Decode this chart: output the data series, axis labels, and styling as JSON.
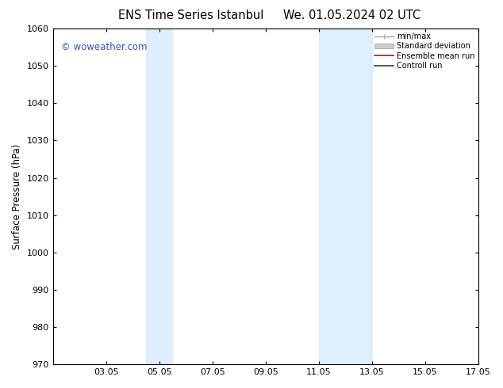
{
  "title_left": "ENS Time Series Istanbul",
  "title_right": "We. 01.05.2024 02 UTC",
  "ylabel": "Surface Pressure (hPa)",
  "ylim": [
    970,
    1060
  ],
  "yticks": [
    970,
    980,
    990,
    1000,
    1010,
    1020,
    1030,
    1040,
    1050,
    1060
  ],
  "xlim": [
    1.05,
    17.05
  ],
  "xticks": [
    3.05,
    5.05,
    7.05,
    9.05,
    11.05,
    13.05,
    15.05,
    17.05
  ],
  "xticklabels": [
    "03.05",
    "05.05",
    "07.05",
    "09.05",
    "11.05",
    "13.05",
    "15.05",
    "17.05"
  ],
  "background_color": "#ffffff",
  "plot_bg_color": "#ffffff",
  "shaded_bands": [
    {
      "xmin": 4.55,
      "xmax": 5.05
    },
    {
      "xmin": 5.05,
      "xmax": 5.55
    },
    {
      "xmin": 11.05,
      "xmax": 11.55
    },
    {
      "xmin": 12.55,
      "xmax": 13.05
    }
  ],
  "shaded_color": "#ddeeff",
  "watermark": "© woweather.com",
  "watermark_color": "#3355bb",
  "legend_labels": [
    "min/max",
    "Standard deviation",
    "Ensemble mean run",
    "Controll run"
  ],
  "legend_colors": [
    "#aaaaaa",
    "#cccccc",
    "#dd0000",
    "#006600"
  ],
  "title_fontsize": 10.5,
  "label_fontsize": 8.5,
  "tick_fontsize": 8
}
